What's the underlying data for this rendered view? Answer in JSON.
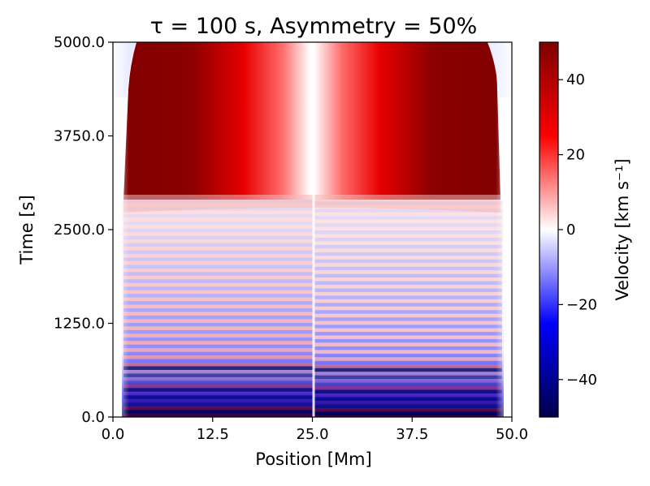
{
  "chart_data": {
    "type": "heatmap",
    "title": "τ = 100 s, Asymmetry = 50%",
    "xlabel": "Position [Mm]",
    "ylabel": "Time [s]",
    "xlim": [
      0.0,
      50.0
    ],
    "ylim": [
      0.0,
      5000.0
    ],
    "x_ticks": [
      0.0,
      12.5,
      25.0,
      37.5,
      50.0
    ],
    "x_tick_labels": [
      "0.0",
      "12.5",
      "25.0",
      "37.5",
      "50.0"
    ],
    "y_ticks": [
      0.0,
      1250.0,
      2500.0,
      3750.0,
      5000.0
    ],
    "y_tick_labels": [
      "0.0",
      "1250.0",
      "2500.0",
      "3750.0",
      "5000.0"
    ],
    "colorbar": {
      "label": "Velocity [km s⁻¹]",
      "range": [
        -50,
        50
      ],
      "ticks": [
        40,
        20,
        0,
        -20,
        -40
      ],
      "tick_labels": [
        "40",
        "20",
        "0",
        "−20",
        "−40"
      ],
      "colormap": "seismic",
      "colors": {
        "negative": "#00004c",
        "zero": "#ffffff",
        "positive": "#7f0000"
      }
    },
    "regions": [
      {
        "name": "strong-negative-band",
        "time": [
          0,
          700
        ],
        "velocity_range": [
          -50,
          -30
        ]
      },
      {
        "name": "oscillating-bands",
        "time": [
          700,
          2900
        ],
        "velocity_range": [
          -20,
          20
        ]
      },
      {
        "name": "strong-positive-flow",
        "time": [
          2950,
          5000
        ],
        "velocity_range": [
          30,
          50
        ],
        "center_velocity": 0
      }
    ]
  }
}
